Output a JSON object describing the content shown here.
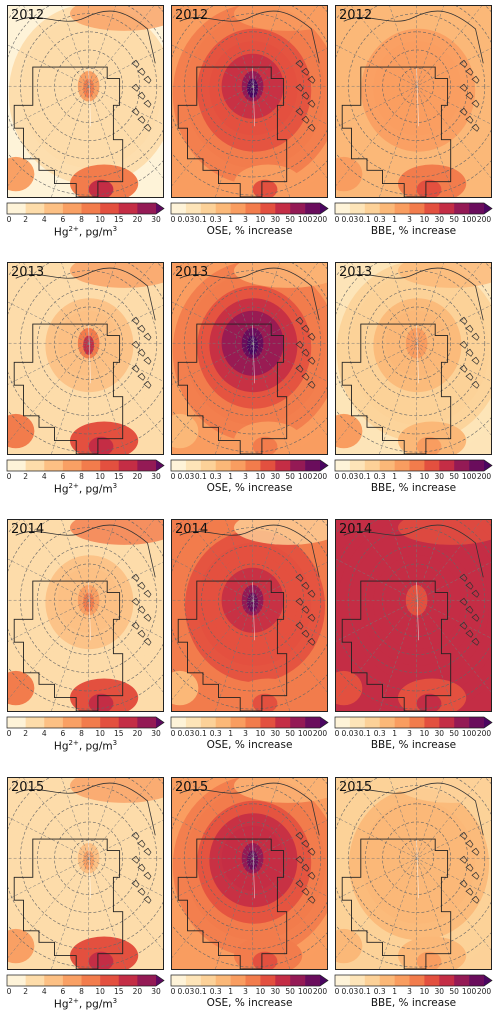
{
  "figure": {
    "rows": [
      {
        "year": "2012"
      },
      {
        "year": "2013"
      },
      {
        "year": "2014"
      },
      {
        "year": "2015"
      }
    ],
    "columns": [
      {
        "id": "hg",
        "label_main": "Hg",
        "label_sup": "2+",
        "label_rest": ",  pg/m",
        "label_sup2": "3",
        "ticks": [
          "0",
          "2",
          "4",
          "6",
          "8",
          "10",
          "15",
          "20",
          "30"
        ],
        "colors": [
          "#fef3d8",
          "#fddcaa",
          "#fcc084",
          "#f9a064",
          "#f27c4c",
          "#e3503f",
          "#c42d45",
          "#941a55",
          "#5e0a60"
        ]
      },
      {
        "id": "ose",
        "label_main": "OSE, % increase",
        "ticks": [
          "0",
          "0.03",
          "0.1",
          "0.3",
          "1",
          "3",
          "10",
          "30",
          "50",
          "100",
          "200"
        ],
        "colors": [
          "#fef3d8",
          "#fde4b8",
          "#fcd198",
          "#fbb878",
          "#f99d60",
          "#f27c4c",
          "#e3503f",
          "#c42d45",
          "#941a55",
          "#6a0d5c",
          "#4a0660"
        ]
      },
      {
        "id": "bbe",
        "label_main": "BBE, % increase",
        "ticks": [
          "0",
          "0.03",
          "0.1",
          "0.3",
          "1",
          "3",
          "10",
          "30",
          "50",
          "100",
          "200"
        ],
        "colors": [
          "#fef3d8",
          "#fde4b8",
          "#fcd198",
          "#fbb878",
          "#f99d60",
          "#f27c4c",
          "#e3503f",
          "#c42d45",
          "#941a55",
          "#6a0d5c",
          "#4a0660"
        ]
      }
    ],
    "maps": {
      "2012": {
        "hg": {
          "base": 0.06,
          "center": 0.55,
          "spread": 0.2,
          "south": 0.7,
          "edge": 0.25
        },
        "ose": {
          "base": 0.42,
          "center": 0.96,
          "spread": 0.7,
          "south": 0.55,
          "edge": 0.28
        },
        "bbe": {
          "base": 0.3,
          "center": 0.38,
          "spread": 0.4,
          "south": 0.62,
          "edge": 0.2
        }
      },
      "2013": {
        "hg": {
          "base": 0.12,
          "center": 0.7,
          "spread": 0.22,
          "south": 0.8,
          "edge": 0.3
        },
        "ose": {
          "base": 0.4,
          "center": 0.98,
          "spread": 0.8,
          "south": 0.45,
          "edge": 0.18
        },
        "bbe": {
          "base": 0.12,
          "center": 0.42,
          "spread": 0.32,
          "south": 0.4,
          "edge": 0.22
        }
      },
      "2014": {
        "hg": {
          "base": 0.1,
          "center": 0.45,
          "spread": 0.25,
          "south": 0.78,
          "edge": 0.35
        },
        "ose": {
          "base": 0.46,
          "center": 0.92,
          "spread": 0.72,
          "south": 0.6,
          "edge": 0.1
        },
        "bbe": {
          "base": 0.68,
          "center": 0.55,
          "spread": 0.65,
          "south": 0.7,
          "edge": 0.45
        }
      },
      "2015": {
        "hg": {
          "base": 0.07,
          "center": 0.4,
          "spread": 0.18,
          "south": 0.72,
          "edge": 0.22
        },
        "ose": {
          "base": 0.4,
          "center": 0.88,
          "spread": 0.75,
          "south": 0.62,
          "edge": 0.2
        },
        "bbe": {
          "base": 0.22,
          "center": 0.32,
          "spread": 0.35,
          "south": 0.38,
          "edge": 0.12
        }
      }
    }
  }
}
